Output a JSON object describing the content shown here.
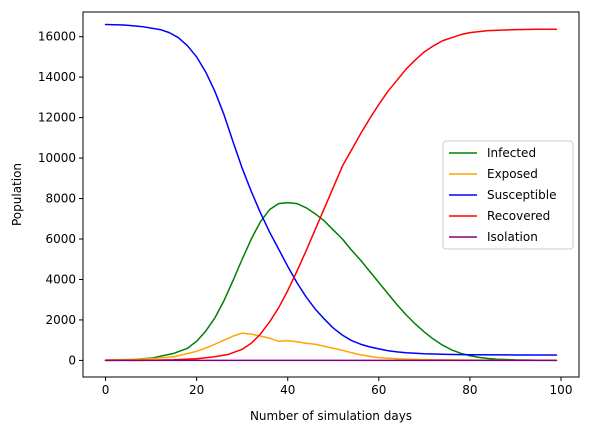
{
  "chart_data": {
    "type": "line",
    "title": "",
    "xlabel": "Number of simulation days",
    "ylabel": "Population",
    "xlim": [
      -4.95,
      103.95
    ],
    "ylim": [
      -820,
      17220
    ],
    "x_ticks": [
      0,
      20,
      40,
      60,
      80,
      100
    ],
    "y_ticks": [
      0,
      2000,
      4000,
      6000,
      8000,
      10000,
      12000,
      14000,
      16000
    ],
    "grid": false,
    "legend_position": "center-right",
    "series": [
      {
        "name": "Infected",
        "color": "#008000",
        "points": [
          [
            0,
            10
          ],
          [
            5,
            25
          ],
          [
            10,
            110
          ],
          [
            15,
            350
          ],
          [
            18,
            600
          ],
          [
            20,
            950
          ],
          [
            22,
            1450
          ],
          [
            24,
            2100
          ],
          [
            26,
            2950
          ],
          [
            28,
            3950
          ],
          [
            30,
            5000
          ],
          [
            32,
            6000
          ],
          [
            34,
            6850
          ],
          [
            36,
            7450
          ],
          [
            38,
            7750
          ],
          [
            40,
            7800
          ],
          [
            42,
            7750
          ],
          [
            44,
            7550
          ],
          [
            46,
            7250
          ],
          [
            48,
            6900
          ],
          [
            50,
            6450
          ],
          [
            52,
            6000
          ],
          [
            54,
            5450
          ],
          [
            56,
            4950
          ],
          [
            58,
            4400
          ],
          [
            60,
            3850
          ],
          [
            62,
            3300
          ],
          [
            64,
            2750
          ],
          [
            66,
            2250
          ],
          [
            68,
            1800
          ],
          [
            70,
            1400
          ],
          [
            72,
            1050
          ],
          [
            74,
            750
          ],
          [
            76,
            520
          ],
          [
            78,
            350
          ],
          [
            80,
            230
          ],
          [
            82,
            150
          ],
          [
            84,
            95
          ],
          [
            86,
            60
          ],
          [
            90,
            25
          ],
          [
            95,
            10
          ],
          [
            99,
            5
          ]
        ]
      },
      {
        "name": "Exposed",
        "color": "#ffa500",
        "points": [
          [
            0,
            20
          ],
          [
            5,
            45
          ],
          [
            10,
            90
          ],
          [
            15,
            180
          ],
          [
            20,
            450
          ],
          [
            23,
            700
          ],
          [
            26,
            1000
          ],
          [
            28,
            1200
          ],
          [
            30,
            1350
          ],
          [
            32,
            1300
          ],
          [
            34,
            1200
          ],
          [
            36,
            1100
          ],
          [
            38,
            950
          ],
          [
            40,
            980
          ],
          [
            42,
            920
          ],
          [
            44,
            850
          ],
          [
            46,
            800
          ],
          [
            48,
            700
          ],
          [
            50,
            600
          ],
          [
            52,
            500
          ],
          [
            54,
            380
          ],
          [
            56,
            280
          ],
          [
            58,
            200
          ],
          [
            60,
            140
          ],
          [
            64,
            80
          ],
          [
            70,
            40
          ],
          [
            80,
            15
          ],
          [
            90,
            5
          ],
          [
            99,
            3
          ]
        ]
      },
      {
        "name": "Susceptible",
        "color": "#0000ff",
        "points": [
          [
            0,
            16600
          ],
          [
            4,
            16580
          ],
          [
            8,
            16500
          ],
          [
            12,
            16350
          ],
          [
            14,
            16200
          ],
          [
            16,
            15950
          ],
          [
            18,
            15550
          ],
          [
            20,
            15000
          ],
          [
            22,
            14250
          ],
          [
            24,
            13300
          ],
          [
            26,
            12150
          ],
          [
            28,
            10800
          ],
          [
            30,
            9500
          ],
          [
            32,
            8350
          ],
          [
            34,
            7300
          ],
          [
            36,
            6350
          ],
          [
            38,
            5500
          ],
          [
            40,
            4650
          ],
          [
            42,
            3850
          ],
          [
            44,
            3150
          ],
          [
            46,
            2550
          ],
          [
            48,
            2050
          ],
          [
            50,
            1600
          ],
          [
            52,
            1250
          ],
          [
            54,
            980
          ],
          [
            56,
            800
          ],
          [
            58,
            670
          ],
          [
            60,
            570
          ],
          [
            62,
            480
          ],
          [
            64,
            420
          ],
          [
            66,
            380
          ],
          [
            70,
            330
          ],
          [
            75,
            300
          ],
          [
            80,
            280
          ],
          [
            90,
            270
          ],
          [
            99,
            270
          ]
        ]
      },
      {
        "name": "Recovered",
        "color": "#ff0000",
        "points": [
          [
            0,
            0
          ],
          [
            10,
            10
          ],
          [
            15,
            30
          ],
          [
            20,
            80
          ],
          [
            24,
            180
          ],
          [
            27,
            300
          ],
          [
            30,
            550
          ],
          [
            32,
            850
          ],
          [
            34,
            1300
          ],
          [
            36,
            1900
          ],
          [
            38,
            2600
          ],
          [
            40,
            3450
          ],
          [
            42,
            4400
          ],
          [
            44,
            5400
          ],
          [
            46,
            6450
          ],
          [
            48,
            7500
          ],
          [
            50,
            8550
          ],
          [
            52,
            9600
          ],
          [
            54,
            10400
          ],
          [
            56,
            11200
          ],
          [
            58,
            11950
          ],
          [
            60,
            12650
          ],
          [
            62,
            13300
          ],
          [
            64,
            13850
          ],
          [
            66,
            14400
          ],
          [
            68,
            14850
          ],
          [
            70,
            15250
          ],
          [
            72,
            15550
          ],
          [
            74,
            15800
          ],
          [
            76,
            15950
          ],
          [
            78,
            16100
          ],
          [
            80,
            16200
          ],
          [
            84,
            16300
          ],
          [
            90,
            16350
          ],
          [
            95,
            16370
          ],
          [
            99,
            16370
          ]
        ]
      },
      {
        "name": "Isolation",
        "color": "#800080",
        "points": [
          [
            0,
            0
          ],
          [
            20,
            0
          ],
          [
            40,
            0
          ],
          [
            60,
            0
          ],
          [
            80,
            0
          ],
          [
            99,
            0
          ]
        ]
      }
    ]
  }
}
